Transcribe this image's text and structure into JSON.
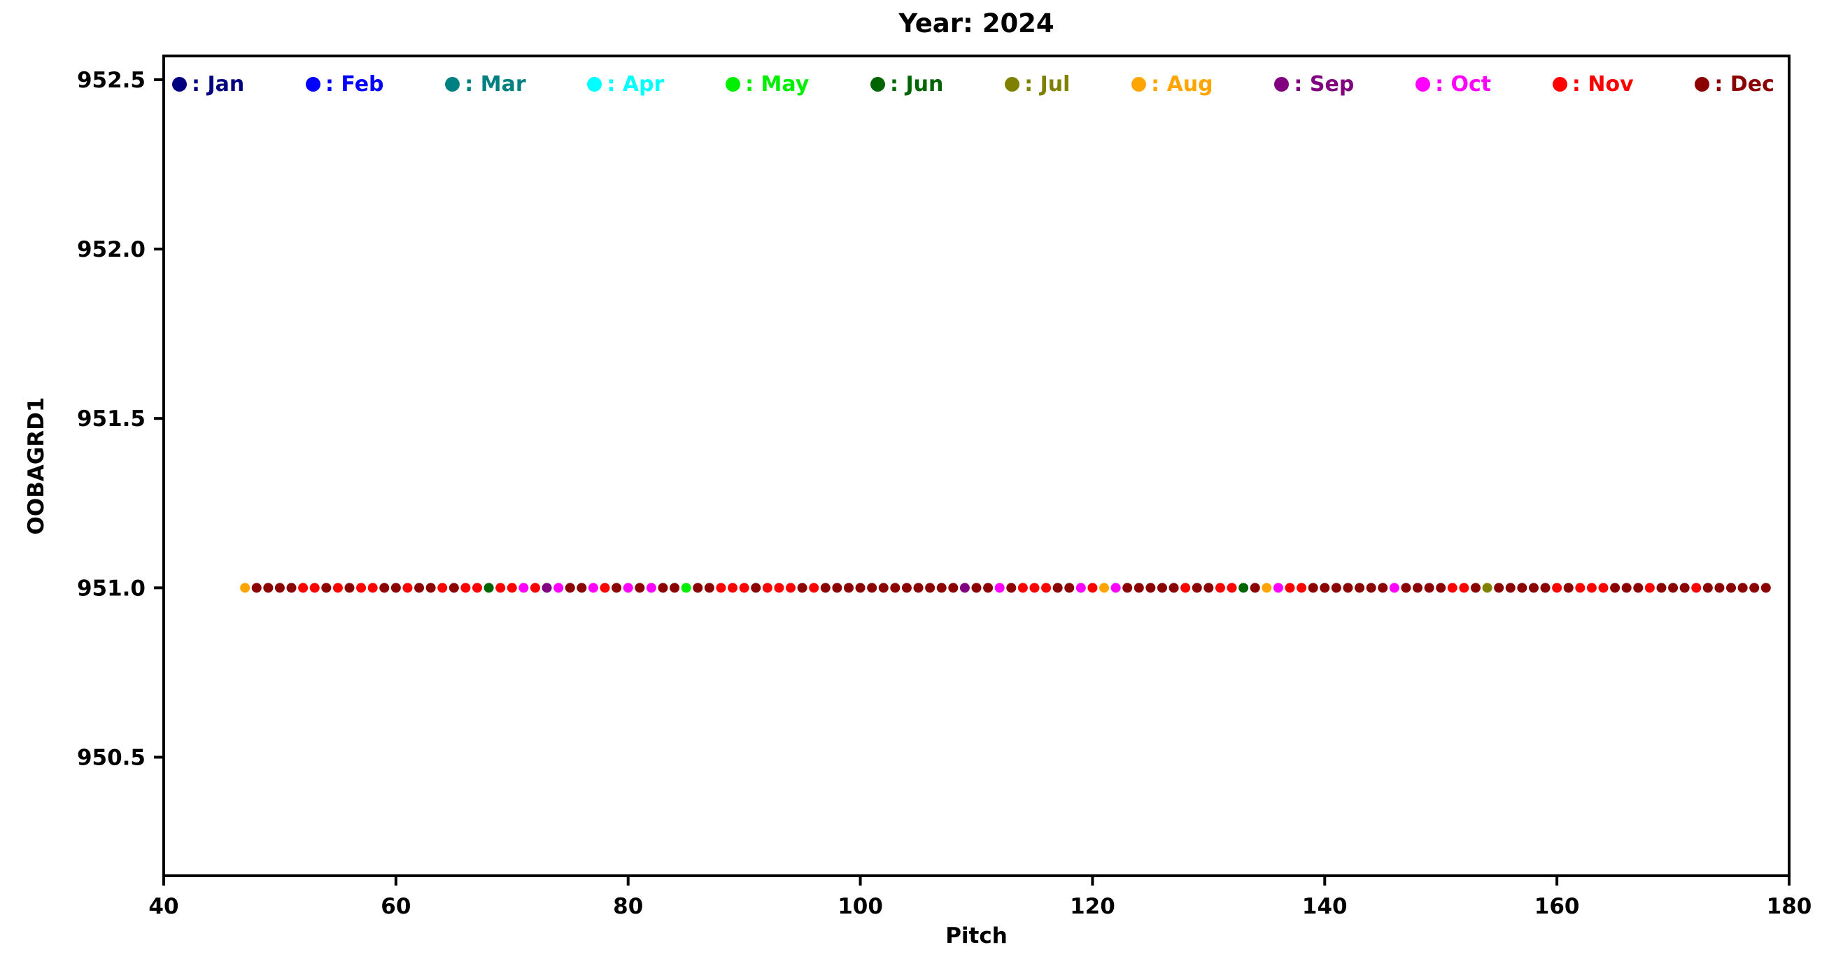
{
  "chart_data": {
    "type": "scatter",
    "title": "Year: 2024",
    "xlabel": "Pitch",
    "ylabel": "OOBAGRD1",
    "xlim": [
      40,
      180
    ],
    "ylim": [
      950.15,
      952.57
    ],
    "xticks": [
      40,
      60,
      80,
      100,
      120,
      140,
      160,
      180
    ],
    "xtick_labels": [
      "40",
      "60",
      "80",
      "100",
      "120",
      "140",
      "160",
      "180"
    ],
    "yticks": [
      950.5,
      951.0,
      951.5,
      952.0,
      952.5
    ],
    "ytick_labels": [
      "950.5",
      "951.0",
      "951.5",
      "952.0",
      "952.5"
    ],
    "grid": false,
    "legend_position": "top-inside",
    "legend": [
      {
        "label": "Jan",
        "color": "#000080"
      },
      {
        "label": "Feb",
        "color": "#0000ff"
      },
      {
        "label": "Mar",
        "color": "#008080"
      },
      {
        "label": "Apr",
        "color": "#00ffff"
      },
      {
        "label": "May",
        "color": "#00ee00"
      },
      {
        "label": "Jun",
        "color": "#006400"
      },
      {
        "label": "Jul",
        "color": "#808000"
      },
      {
        "label": "Aug",
        "color": "#ffa500"
      },
      {
        "label": "Sep",
        "color": "#800080"
      },
      {
        "label": "Oct",
        "color": "#ff00ff"
      },
      {
        "label": "Nov",
        "color": "#ff0000"
      },
      {
        "label": "Dec",
        "color": "#8b0000"
      }
    ],
    "y_value": 951.0,
    "points": [
      [
        47,
        "Aug"
      ],
      [
        48,
        "Dec"
      ],
      [
        49,
        "Dec"
      ],
      [
        50,
        "Dec"
      ],
      [
        51,
        "Dec"
      ],
      [
        52,
        "Nov"
      ],
      [
        53,
        "Nov"
      ],
      [
        54,
        "Dec"
      ],
      [
        55,
        "Nov"
      ],
      [
        56,
        "Dec"
      ],
      [
        57,
        "Nov"
      ],
      [
        58,
        "Nov"
      ],
      [
        59,
        "Dec"
      ],
      [
        60,
        "Dec"
      ],
      [
        61,
        "Nov"
      ],
      [
        62,
        "Dec"
      ],
      [
        63,
        "Dec"
      ],
      [
        64,
        "Nov"
      ],
      [
        65,
        "Dec"
      ],
      [
        66,
        "Nov"
      ],
      [
        67,
        "Nov"
      ],
      [
        68,
        "Jun"
      ],
      [
        69,
        "Nov"
      ],
      [
        70,
        "Nov"
      ],
      [
        71,
        "Oct"
      ],
      [
        72,
        "Nov"
      ],
      [
        73,
        "Sep"
      ],
      [
        74,
        "Oct"
      ],
      [
        75,
        "Dec"
      ],
      [
        76,
        "Dec"
      ],
      [
        77,
        "Oct"
      ],
      [
        78,
        "Nov"
      ],
      [
        79,
        "Dec"
      ],
      [
        80,
        "Oct"
      ],
      [
        81,
        "Dec"
      ],
      [
        82,
        "Oct"
      ],
      [
        83,
        "Dec"
      ],
      [
        84,
        "Dec"
      ],
      [
        85,
        "May"
      ],
      [
        86,
        "Dec"
      ],
      [
        87,
        "Dec"
      ],
      [
        88,
        "Nov"
      ],
      [
        89,
        "Nov"
      ],
      [
        90,
        "Nov"
      ],
      [
        91,
        "Dec"
      ],
      [
        92,
        "Nov"
      ],
      [
        93,
        "Nov"
      ],
      [
        94,
        "Nov"
      ],
      [
        95,
        "Dec"
      ],
      [
        96,
        "Nov"
      ],
      [
        97,
        "Dec"
      ],
      [
        98,
        "Dec"
      ],
      [
        99,
        "Dec"
      ],
      [
        100,
        "Dec"
      ],
      [
        101,
        "Dec"
      ],
      [
        102,
        "Dec"
      ],
      [
        103,
        "Dec"
      ],
      [
        104,
        "Dec"
      ],
      [
        105,
        "Dec"
      ],
      [
        106,
        "Dec"
      ],
      [
        107,
        "Dec"
      ],
      [
        108,
        "Dec"
      ],
      [
        109,
        "Sep"
      ],
      [
        110,
        "Dec"
      ],
      [
        111,
        "Dec"
      ],
      [
        112,
        "Oct"
      ],
      [
        113,
        "Dec"
      ],
      [
        114,
        "Nov"
      ],
      [
        115,
        "Nov"
      ],
      [
        116,
        "Nov"
      ],
      [
        117,
        "Dec"
      ],
      [
        118,
        "Dec"
      ],
      [
        119,
        "Oct"
      ],
      [
        120,
        "Nov"
      ],
      [
        121,
        "Aug"
      ],
      [
        122,
        "Oct"
      ],
      [
        123,
        "Dec"
      ],
      [
        124,
        "Dec"
      ],
      [
        125,
        "Dec"
      ],
      [
        126,
        "Dec"
      ],
      [
        127,
        "Dec"
      ],
      [
        128,
        "Nov"
      ],
      [
        129,
        "Dec"
      ],
      [
        130,
        "Dec"
      ],
      [
        131,
        "Nov"
      ],
      [
        132,
        "Nov"
      ],
      [
        133,
        "Jun"
      ],
      [
        134,
        "Dec"
      ],
      [
        135,
        "Aug"
      ],
      [
        136,
        "Oct"
      ],
      [
        137,
        "Nov"
      ],
      [
        138,
        "Nov"
      ],
      [
        139,
        "Dec"
      ],
      [
        140,
        "Dec"
      ],
      [
        141,
        "Dec"
      ],
      [
        142,
        "Dec"
      ],
      [
        143,
        "Dec"
      ],
      [
        144,
        "Dec"
      ],
      [
        145,
        "Dec"
      ],
      [
        146,
        "Oct"
      ],
      [
        147,
        "Dec"
      ],
      [
        148,
        "Dec"
      ],
      [
        149,
        "Dec"
      ],
      [
        150,
        "Dec"
      ],
      [
        151,
        "Nov"
      ],
      [
        152,
        "Nov"
      ],
      [
        153,
        "Dec"
      ],
      [
        154,
        "Jul"
      ],
      [
        155,
        "Dec"
      ],
      [
        156,
        "Dec"
      ],
      [
        157,
        "Dec"
      ],
      [
        158,
        "Dec"
      ],
      [
        159,
        "Dec"
      ],
      [
        160,
        "Nov"
      ],
      [
        161,
        "Dec"
      ],
      [
        162,
        "Nov"
      ],
      [
        163,
        "Nov"
      ],
      [
        164,
        "Nov"
      ],
      [
        165,
        "Dec"
      ],
      [
        166,
        "Dec"
      ],
      [
        167,
        "Dec"
      ],
      [
        168,
        "Nov"
      ],
      [
        169,
        "Dec"
      ],
      [
        170,
        "Dec"
      ],
      [
        171,
        "Dec"
      ],
      [
        172,
        "Nov"
      ],
      [
        173,
        "Dec"
      ],
      [
        174,
        "Dec"
      ],
      [
        175,
        "Dec"
      ],
      [
        176,
        "Dec"
      ],
      [
        177,
        "Dec"
      ],
      [
        178,
        "Dec"
      ]
    ]
  }
}
